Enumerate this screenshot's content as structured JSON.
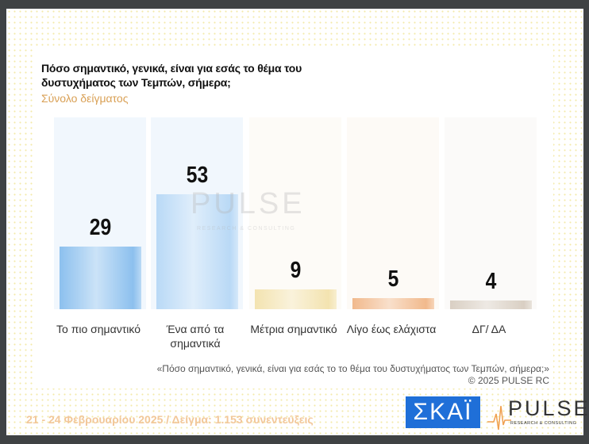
{
  "header": {
    "title": "Πόσο σημαντικό, γενικά, είναι για εσάς το θέμα του δυστυχήματος των Τεμπών, σήμερα;",
    "subtitle": "Σύνολο δείγματος"
  },
  "chart_data": {
    "type": "bar",
    "categories": [
      "Το πιο σημαντικό",
      "Ένα από τα σημαντικά",
      "Μέτρια σημαντικό",
      "Λίγο έως ελάχιστα",
      "ΔΓ/ ΔΑ"
    ],
    "values": [
      29,
      53,
      9,
      5,
      4
    ],
    "value_labels": [
      "29",
      "53",
      "9",
      "5",
      "4"
    ],
    "colors": [
      "#8cc0ee",
      "#b9d9f6",
      "#f3e3b0",
      "#f1b98c",
      "#d9cfc3"
    ],
    "column_bg": [
      "#f1f7fd",
      "#f1f7fd",
      "#fdfbf7",
      "#fdfaf6",
      "#fbfaf9"
    ],
    "ylim": [
      0,
      88
    ],
    "grid": false
  },
  "watermark": {
    "brand": "PULSE",
    "tag": "RESEARCH & CONSULTING"
  },
  "footer": {
    "quote": "«Πόσο σημαντικό, γενικά, είναι για εσάς το το θέμα του δυστυχήματος των Τεμπών, σήμερα;»",
    "copyright": "©  2025  PULSE RC",
    "dates": "21 - 24 Φεβρουαρίου 2025  /  Δείγμα:  1.153 συνεντεύξεις",
    "skai_logo": "ΣΚΑΪ",
    "pulse_logo": "PULSE",
    "pulse_tag": "RESEARCH & CONSULTING"
  }
}
